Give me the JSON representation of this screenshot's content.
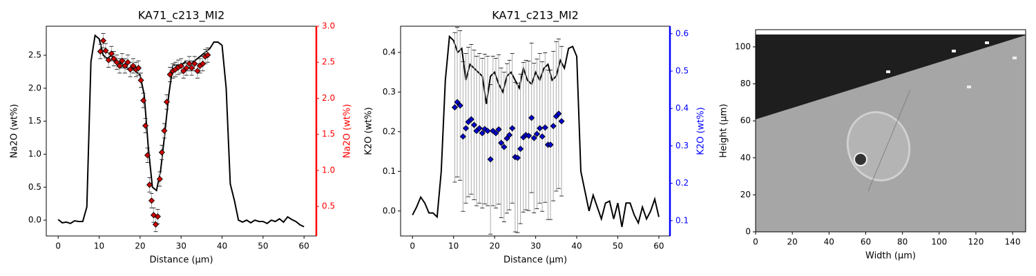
{
  "chart_data": [
    {
      "type": "line_scatter",
      "title": "KA71_c213_MI2",
      "xlabel": "Distance (µm)",
      "ylabel": "Na2O (wt%)",
      "y2label": "Na2O (wt%)",
      "y2color": "#ff0000",
      "xlim": [
        -2.9,
        63.0
      ],
      "ylim": [
        -0.24,
        2.94
      ],
      "y2lim": [
        0.09,
        3.0
      ],
      "xticks": [
        0,
        10,
        20,
        30,
        40,
        50,
        60
      ],
      "yticks": [
        {
          "value": 0,
          "label": "0.0"
        },
        {
          "value": 0.5,
          "label": "0.5"
        },
        {
          "value": 1,
          "label": "1.0"
        },
        {
          "value": 1.5,
          "label": "1.5"
        },
        {
          "value": 2,
          "label": "2.0"
        },
        {
          "value": 2.5,
          "label": "2.5"
        }
      ],
      "y2ticks": [
        {
          "value": 0.5,
          "label": "0.5"
        },
        {
          "value": 1,
          "label": "1.0"
        },
        {
          "value": 1.5,
          "label": "1.5"
        },
        {
          "value": 2,
          "label": "2.0"
        },
        {
          "value": 2.5,
          "label": "2.5"
        },
        {
          "value": 3,
          "label": "3.0"
        }
      ],
      "series": [
        {
          "color": "#000000",
          "x": [
            0,
            1,
            2,
            3,
            4,
            5,
            6,
            7,
            8,
            9,
            10,
            11,
            12,
            13,
            14,
            15,
            16,
            17,
            18,
            19,
            20,
            21,
            22,
            23,
            24,
            25,
            26,
            27,
            28,
            29,
            30,
            31,
            32,
            33,
            34,
            35,
            36,
            37,
            38,
            39,
            40,
            41,
            42,
            43,
            44,
            45,
            46,
            47,
            48,
            49,
            50,
            51,
            52,
            53,
            54,
            55,
            56,
            57,
            58,
            59,
            60
          ],
          "values": [
            0.01,
            -0.04,
            -0.03,
            -0.05,
            -0.01,
            -0.02,
            -0.02,
            0.2,
            2.4,
            2.8,
            2.75,
            2.5,
            2.45,
            2.5,
            2.4,
            2.4,
            2.35,
            2.3,
            2.3,
            2.25,
            2.2,
            1.9,
            1.1,
            0.5,
            0.45,
            0.75,
            1.3,
            1.9,
            2.35,
            2.35,
            2.35,
            2.4,
            2.35,
            2.4,
            2.45,
            2.5,
            2.55,
            2.6,
            2.7,
            2.7,
            2.65,
            2.0,
            0.55,
            0.3,
            0.0,
            -0.03,
            0.0,
            -0.04,
            0.0,
            -0.02,
            -0.02,
            -0.05,
            0.0,
            -0.02,
            0.02,
            -0.03,
            0.05,
            0.01,
            -0.02,
            -0.07,
            -0.1
          ]
        },
        {
          "color": "#cc0000",
          "axis": "y2",
          "marker": "diamond",
          "x": [
            10.3,
            11,
            11.6,
            12.3,
            13,
            13.6,
            14.3,
            15,
            15.6,
            16.3,
            17,
            17.6,
            18.3,
            19,
            19.6,
            20.2,
            20.8,
            21.3,
            21.8,
            22.3,
            22.8,
            23.3,
            23.8,
            24.3,
            24.8,
            25.3,
            25.9,
            26.5,
            27.3,
            28,
            28.6,
            29.3,
            30,
            30.6,
            31.3,
            32,
            32.6,
            33.3,
            34,
            34.6,
            35.3,
            35.9,
            36.5
          ],
          "values": [
            2.65,
            2.8,
            2.66,
            2.53,
            2.62,
            2.55,
            2.5,
            2.45,
            2.52,
            2.45,
            2.5,
            2.4,
            2.45,
            2.4,
            2.42,
            2.25,
            1.97,
            1.62,
            1.21,
            0.8,
            0.58,
            0.38,
            0.25,
            0.36,
            0.88,
            1.25,
            1.55,
            1.95,
            2.33,
            2.38,
            2.4,
            2.43,
            2.45,
            2.38,
            2.42,
            2.48,
            2.42,
            2.48,
            2.38,
            2.45,
            2.48,
            2.58,
            2.6
          ],
          "errors": [
            0.1,
            0.1,
            0.1,
            0.1,
            0.1,
            0.1,
            0.1,
            0.1,
            0.1,
            0.1,
            0.1,
            0.1,
            0.1,
            0.1,
            0.1,
            0.1,
            0.1,
            0.1,
            0.1,
            0.1,
            0.1,
            0.1,
            0.1,
            0.1,
            0.1,
            0.1,
            0.1,
            0.1,
            0.1,
            0.1,
            0.1,
            0.1,
            0.1,
            0.1,
            0.1,
            0.1,
            0.1,
            0.1,
            0.1,
            0.1,
            0.1,
            0.1,
            0.1
          ]
        }
      ]
    },
    {
      "type": "line_scatter",
      "title": "KA71_c213_MI2",
      "xlabel": "Distance (µm)",
      "ylabel": "K2O (wt%)",
      "y2label": "K2O (wt%)",
      "y2color": "#0000ff",
      "xlim": [
        -2.9,
        62.7
      ],
      "ylim": [
        -0.063,
        0.466
      ],
      "y2lim": [
        0.059,
        0.62
      ],
      "xticks": [
        0,
        10,
        20,
        30,
        40,
        50,
        60
      ],
      "yticks": [
        {
          "value": 0,
          "label": "0.0"
        },
        {
          "value": 0.1,
          "label": "0.1"
        },
        {
          "value": 0.2,
          "label": "0.2"
        },
        {
          "value": 0.3,
          "label": "0.3"
        },
        {
          "value": 0.4,
          "label": "0.4"
        }
      ],
      "y2ticks": [
        0.1,
        0.2,
        0.3,
        0.4,
        0.5,
        0.6
      ],
      "series": [
        {
          "color": "#000000",
          "x": [
            0,
            1,
            2,
            3,
            4,
            5,
            6,
            7,
            8,
            9,
            10,
            11,
            12,
            13,
            14,
            15,
            16,
            17,
            18,
            19,
            20,
            21,
            22,
            23,
            24,
            25,
            26,
            27,
            28,
            29,
            30,
            31,
            32,
            33,
            34,
            35,
            36,
            37,
            38,
            39,
            40,
            41,
            42,
            43,
            44,
            45,
            46,
            47,
            48,
            49,
            50,
            51,
            52,
            53,
            54,
            55,
            56,
            57,
            58,
            59,
            60
          ],
          "values": [
            -0.01,
            0.01,
            0.035,
            0.02,
            -0.005,
            -0.005,
            -0.015,
            0.1,
            0.33,
            0.44,
            0.43,
            0.4,
            0.41,
            0.33,
            0.37,
            0.36,
            0.35,
            0.34,
            0.27,
            0.34,
            0.35,
            0.32,
            0.3,
            0.34,
            0.35,
            0.33,
            0.31,
            0.36,
            0.33,
            0.32,
            0.35,
            0.33,
            0.36,
            0.37,
            0.33,
            0.34,
            0.38,
            0.36,
            0.41,
            0.415,
            0.39,
            0.1,
            0.05,
            0.0,
            0.04,
            0.01,
            -0.02,
            0.02,
            0.025,
            -0.02,
            0.02,
            -0.04,
            0.02,
            0.02,
            -0.01,
            -0.03,
            0.01,
            -0.02,
            0.0,
            0.03,
            -0.015
          ]
        },
        {
          "color": "#0000cc",
          "axis": "y2",
          "marker": "diamond",
          "x": [
            10.3,
            10.9,
            11.6,
            12.3,
            13.0,
            13.6,
            14.3,
            15.0,
            15.6,
            16.3,
            17.0,
            17.6,
            18.3,
            19.0,
            19.6,
            20.3,
            21.0,
            21.6,
            22.3,
            23.0,
            23.6,
            24.3,
            25.0,
            25.6,
            26.3,
            27.0,
            27.6,
            28.3,
            29.0,
            29.6,
            30.3,
            31.0,
            31.6,
            32.3,
            33.0,
            33.6,
            34.3,
            35.0,
            35.6,
            36.3
          ],
          "values": [
            0.403,
            0.417,
            0.408,
            0.325,
            0.347,
            0.364,
            0.371,
            0.356,
            0.34,
            0.347,
            0.334,
            0.345,
            0.34,
            0.264,
            0.34,
            0.334,
            0.344,
            0.308,
            0.297,
            0.32,
            0.329,
            0.347,
            0.27,
            0.268,
            0.292,
            0.323,
            0.329,
            0.327,
            0.375,
            0.321,
            0.332,
            0.347,
            0.325,
            0.349,
            0.303,
            0.303,
            0.353,
            0.379,
            0.386,
            0.366
          ],
          "errors": [
            0.2,
            0.2,
            0.2,
            0.2,
            0.2,
            0.2,
            0.2,
            0.2,
            0.2,
            0.2,
            0.2,
            0.2,
            0.2,
            0.2,
            0.2,
            0.2,
            0.2,
            0.2,
            0.2,
            0.2,
            0.2,
            0.2,
            0.2,
            0.2,
            0.2,
            0.2,
            0.2,
            0.2,
            0.2,
            0.2,
            0.2,
            0.2,
            0.2,
            0.2,
            0.2,
            0.2,
            0.2,
            0.2,
            0.2,
            0.2
          ]
        }
      ]
    },
    {
      "type": "image",
      "xlabel": "Width (µm)",
      "ylabel": "Height (µm)",
      "xlim": [
        0,
        147.1
      ],
      "ylim": [
        0,
        109.3
      ],
      "xticks": [
        0,
        20,
        40,
        60,
        80,
        100,
        120,
        140
      ],
      "yticks": [
        0,
        20,
        40,
        60,
        80,
        100
      ]
    }
  ]
}
